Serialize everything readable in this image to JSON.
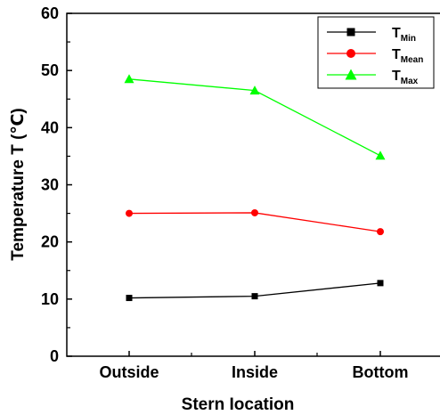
{
  "chart_data": {
    "type": "line",
    "categories": [
      "Outside",
      "Inside",
      "Bottom"
    ],
    "xlabel": "Stern Iocation",
    "ylabel": "Temperature T (℃)",
    "ylim": [
      0,
      60
    ],
    "yticks": [
      "0",
      "10",
      "20",
      "30",
      "40",
      "50",
      "60"
    ],
    "grid": false,
    "legend_position": "top-right",
    "series": [
      {
        "name": "T",
        "subscript": "Min",
        "color": "#000000",
        "marker": "square",
        "values": [
          10.2,
          10.5,
          12.8
        ]
      },
      {
        "name": "T",
        "subscript": "Mean",
        "color": "#ff0000",
        "marker": "circle",
        "values": [
          25.0,
          25.1,
          21.8
        ]
      },
      {
        "name": "T",
        "subscript": "Max",
        "color": "#00ff00",
        "marker": "triangle",
        "values": [
          48.5,
          46.5,
          35.1
        ]
      }
    ]
  }
}
